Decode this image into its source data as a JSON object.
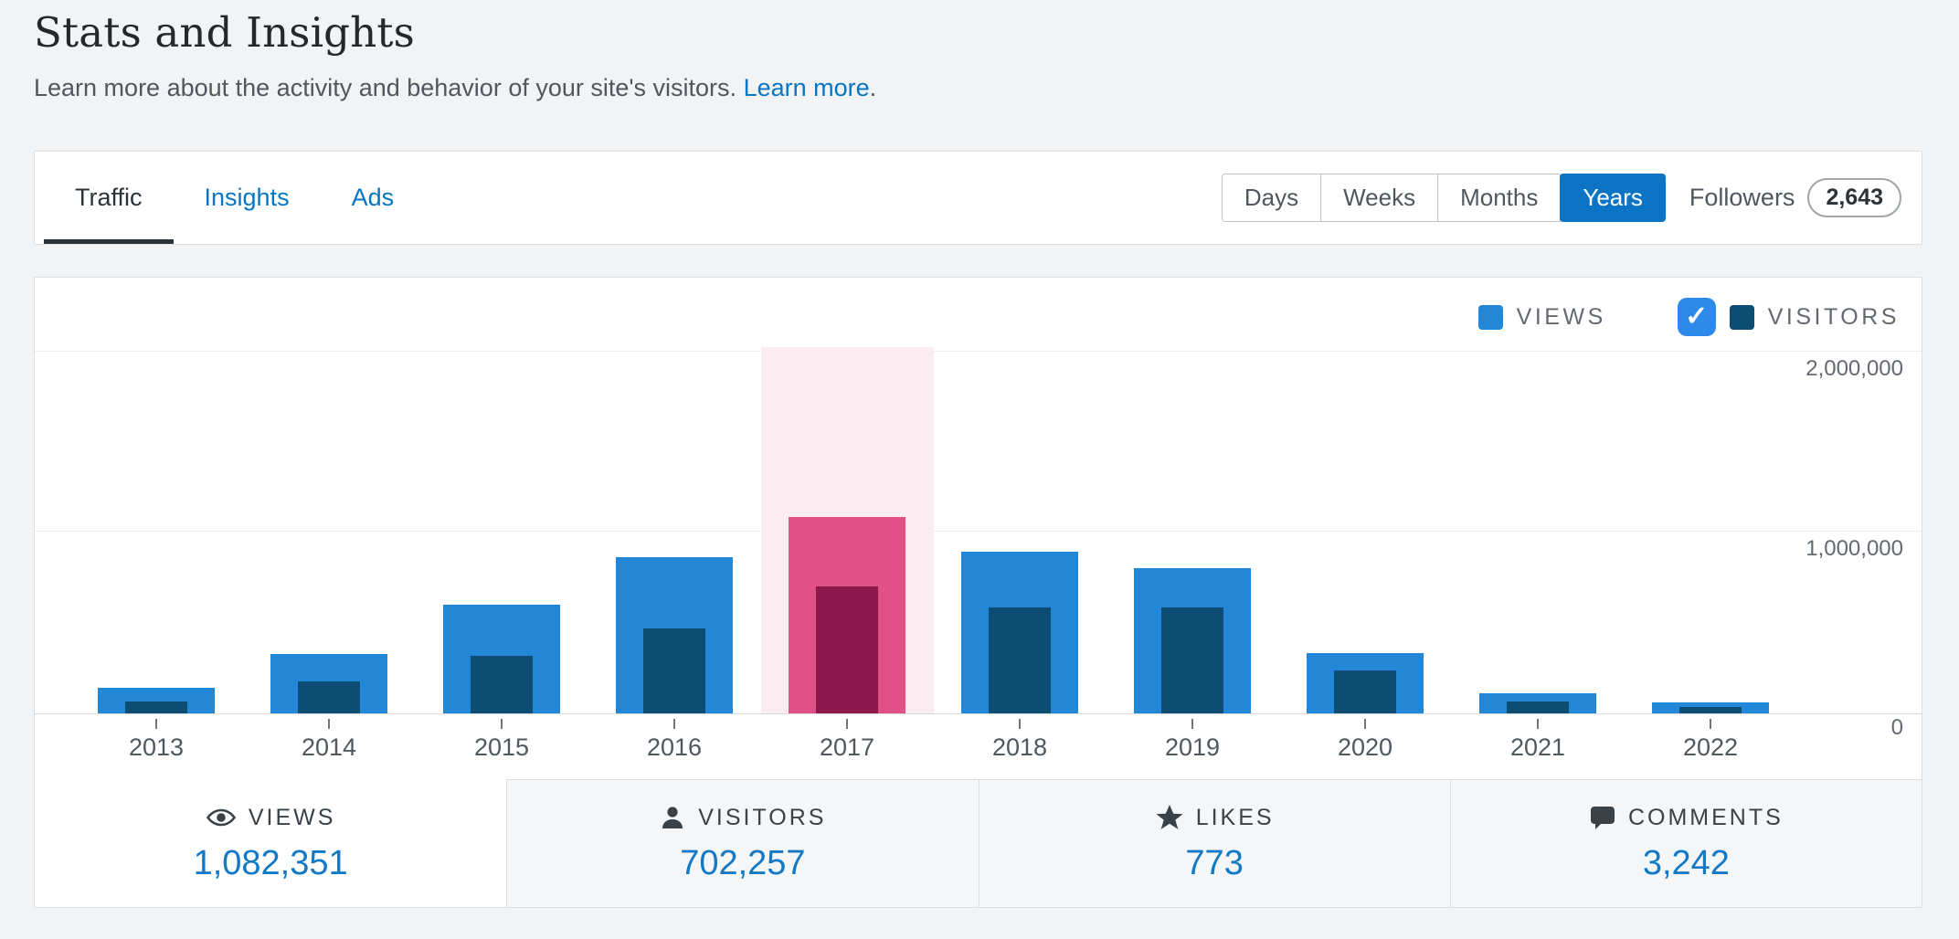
{
  "header": {
    "title": "Stats and Insights",
    "subtitle": "Learn more about the activity and behavior of your site's visitors.",
    "learn_more_label": "Learn more",
    "subtitle_end": "."
  },
  "toolbar": {
    "tabs": [
      {
        "label": "Traffic",
        "active": true
      },
      {
        "label": "Insights",
        "active": false
      },
      {
        "label": "Ads",
        "active": false
      }
    ],
    "intervals": [
      {
        "label": "Days",
        "active": false
      },
      {
        "label": "Weeks",
        "active": false
      },
      {
        "label": "Months",
        "active": false
      },
      {
        "label": "Years",
        "active": true
      }
    ],
    "followers_label": "Followers",
    "followers_count": "2,643"
  },
  "chart": {
    "legend": {
      "views_label": "VIEWS",
      "visitors_label": "VISITORS",
      "visitors_checkbox_checked": true,
      "checkmark": "✓"
    }
  },
  "chart_data": {
    "type": "bar",
    "categories": [
      "2013",
      "2014",
      "2015",
      "2016",
      "2017",
      "2018",
      "2019",
      "2020",
      "2021",
      "2022"
    ],
    "series": [
      {
        "name": "Views",
        "color": "#2387d7",
        "selected_color": "#e15087",
        "values": [
          140000,
          325000,
          600000,
          860000,
          1082351,
          890000,
          800000,
          330000,
          110000,
          60000
        ]
      },
      {
        "name": "Visitors",
        "color": "#0d4d73",
        "selected_color": "#8a184c",
        "values": [
          65000,
          175000,
          315000,
          470000,
          702257,
          585000,
          585000,
          235000,
          65000,
          35000
        ]
      }
    ],
    "selected_category": "2017",
    "selected_column_color": "#faecf1",
    "ylim": [
      0,
      2000000
    ],
    "y_tick_labels": [
      "2,000,000",
      "1,000,000",
      "0"
    ],
    "grid": true,
    "legend_position": "top-right"
  },
  "summary": {
    "tabs": [
      {
        "label": "VIEWS",
        "value": "1,082,351",
        "icon": "eye-icon",
        "active": true
      },
      {
        "label": "VISITORS",
        "value": "702,257",
        "icon": "person-icon",
        "active": false
      },
      {
        "label": "LIKES",
        "value": "773",
        "icon": "star-icon",
        "active": false
      },
      {
        "label": "COMMENTS",
        "value": "3,242",
        "icon": "comment-icon",
        "active": false
      }
    ]
  },
  "colors": {
    "accent_blue": "#0675c4",
    "views_blue": "#2387d7",
    "visitors_navy": "#0d4d73",
    "selected_pink": "#e15087",
    "selected_magenta": "#8a184c",
    "highlight_pink": "#faecf1",
    "stat_value_blue": "#1279c7",
    "active_interval_blue": "#0b74c4",
    "checkbox_blue": "#2d8aeb",
    "tick_color": "#70757a"
  }
}
